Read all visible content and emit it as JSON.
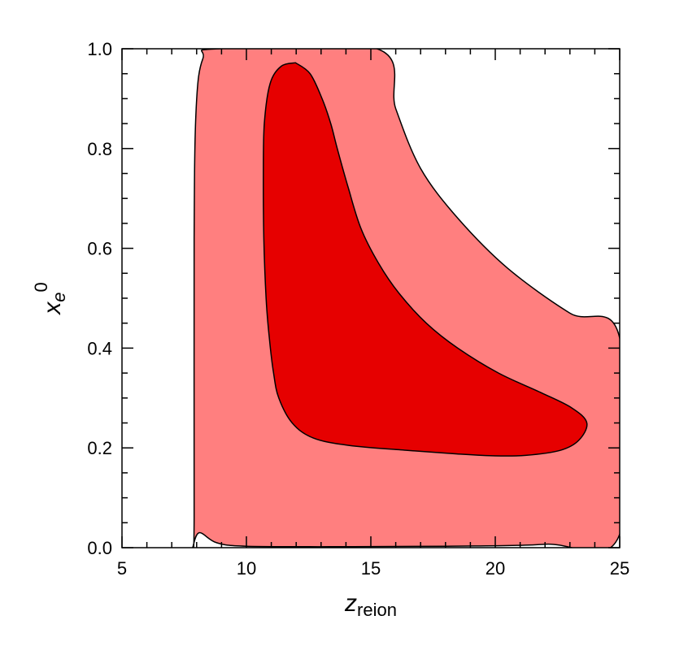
{
  "chart_data": {
    "type": "contour",
    "xlabel": "z",
    "xlabel_sub": "reion",
    "ylabel": "x",
    "ylabel_sub": "e",
    "ylabel_sup": "0",
    "xlim": [
      5,
      25
    ],
    "ylim": [
      0,
      1.0
    ],
    "xticks": [
      5,
      10,
      15,
      20,
      25
    ],
    "xtick_labels": [
      "5",
      "10",
      "15",
      "20",
      "25"
    ],
    "yticks": [
      0,
      0.2,
      0.4,
      0.6,
      0.8,
      1.0
    ],
    "ytick_labels": [
      "0.0",
      "0.2",
      "0.4",
      "0.6",
      "0.8",
      "1.0"
    ],
    "grid": false,
    "legend": "none",
    "regions": [
      {
        "level": "outer",
        "color": "#ff7f7f",
        "outline": [
          [
            7.84,
            0.0
          ],
          [
            7.9,
            0.06
          ],
          [
            7.9,
            0.62
          ],
          [
            7.98,
            0.88
          ],
          [
            8.25,
            0.98
          ],
          [
            8.9,
            1.0
          ],
          [
            15.25,
            1.0
          ],
          [
            16.0,
            0.88
          ],
          [
            17.0,
            0.76
          ],
          [
            18.5,
            0.66
          ],
          [
            20.5,
            0.56
          ],
          [
            23.0,
            0.47
          ],
          [
            25.0,
            0.42
          ],
          [
            25.0,
            0.027
          ],
          [
            22.0,
            0.007
          ],
          [
            18.0,
            0.003
          ],
          [
            14.0,
            0.002
          ],
          [
            10.0,
            0.003
          ],
          [
            8.8,
            0.01
          ],
          [
            8.1,
            0.03
          ],
          [
            7.84,
            0.0
          ]
        ]
      },
      {
        "level": "inner",
        "color": "#e60000",
        "outline": [
          [
            11.97,
            0.972
          ],
          [
            12.56,
            0.95
          ],
          [
            13.04,
            0.9
          ],
          [
            13.39,
            0.85
          ],
          [
            13.65,
            0.8
          ],
          [
            14.1,
            0.72
          ],
          [
            14.6,
            0.64
          ],
          [
            15.31,
            0.57
          ],
          [
            16.13,
            0.51
          ],
          [
            17.23,
            0.45
          ],
          [
            18.49,
            0.4
          ],
          [
            20.13,
            0.35
          ],
          [
            21.87,
            0.31
          ],
          [
            23.08,
            0.28
          ],
          [
            23.68,
            0.25
          ],
          [
            23.35,
            0.215
          ],
          [
            22.6,
            0.195
          ],
          [
            21.22,
            0.185
          ],
          [
            19.99,
            0.184
          ],
          [
            18.46,
            0.188
          ],
          [
            16.47,
            0.195
          ],
          [
            14.11,
            0.205
          ],
          [
            12.68,
            0.22
          ],
          [
            11.84,
            0.25
          ],
          [
            11.3,
            0.3
          ],
          [
            11.09,
            0.35
          ],
          [
            10.92,
            0.42
          ],
          [
            10.79,
            0.5
          ],
          [
            10.7,
            0.62
          ],
          [
            10.68,
            0.75
          ],
          [
            10.72,
            0.85
          ],
          [
            10.95,
            0.93
          ],
          [
            11.4,
            0.965
          ],
          [
            11.97,
            0.972
          ]
        ]
      }
    ]
  }
}
